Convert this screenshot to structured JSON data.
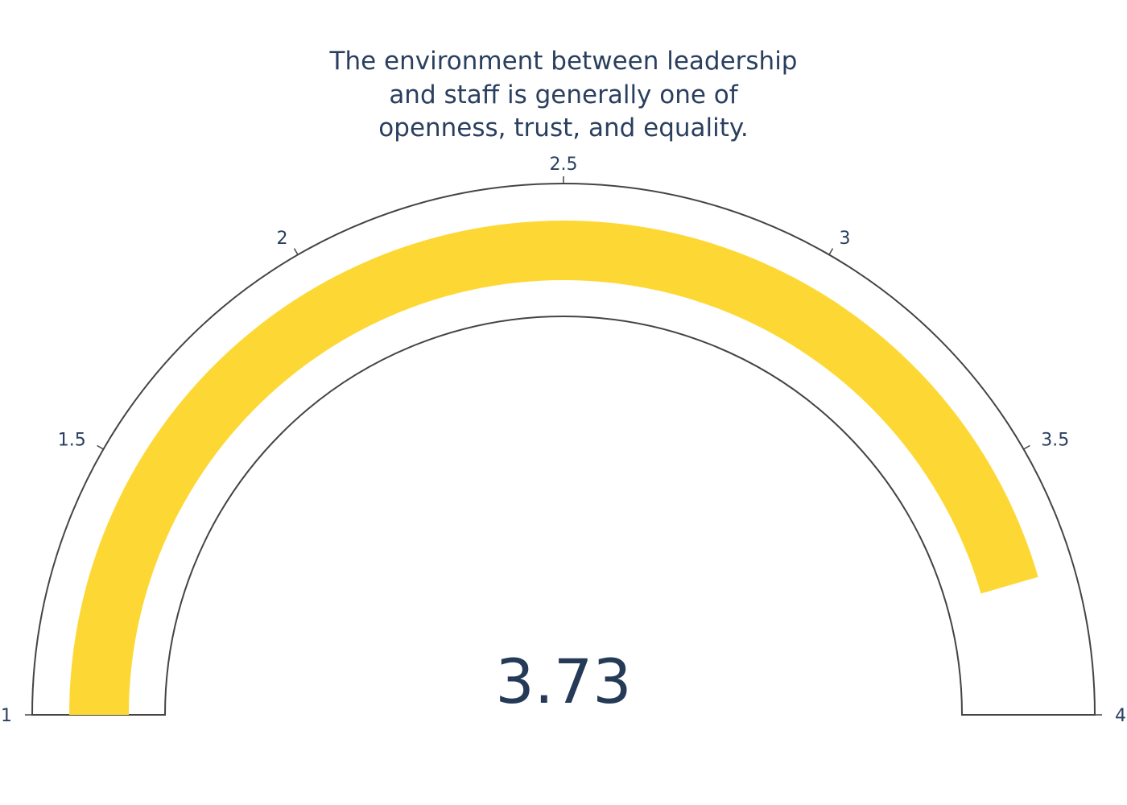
{
  "chart_data": {
    "type": "gauge",
    "title_lines": [
      "The environment between leadership",
      "and staff is generally one of",
      "openness, trust, and equality."
    ],
    "value": 3.73,
    "value_label": "3.73",
    "range": [
      1,
      4
    ],
    "ticks": [
      1,
      1.5,
      2,
      2.5,
      3,
      3.5,
      4
    ],
    "tick_labels": [
      "1",
      "1.5",
      "2",
      "2.5",
      "3",
      "3.5",
      "4"
    ],
    "bar_color": "#fdd835",
    "outline_color": "#444444",
    "text_color": "#2a3f5f"
  }
}
